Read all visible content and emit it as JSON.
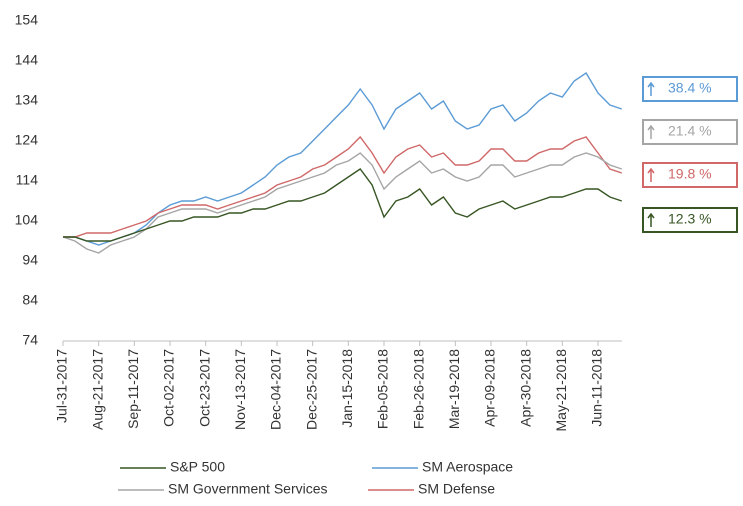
{
  "chart_data": {
    "type": "line",
    "categories": [
      "Jul-31-2017",
      null,
      null,
      "Aug-21-2017",
      null,
      null,
      "Sep-11-2017",
      null,
      null,
      "Oct-02-2017",
      null,
      null,
      "Oct-23-2017",
      null,
      null,
      "Nov-13-2017",
      null,
      null,
      "Dec-04-2017",
      null,
      null,
      "Dec-25-2017",
      null,
      null,
      "Jan-15-2018",
      null,
      null,
      "Feb-05-2018",
      null,
      null,
      "Feb-26-2018",
      null,
      null,
      "Mar-19-2018",
      null,
      null,
      "Apr-09-2018",
      null,
      null,
      "Apr-30-2018",
      null,
      null,
      "May-21-2018",
      null,
      null,
      "Jun-11-2018",
      null,
      null
    ],
    "series": [
      {
        "name": "S&P 500",
        "color": "#375623",
        "values": [
          100,
          100,
          99,
          99,
          99,
          100,
          101,
          102,
          103,
          104,
          104,
          105,
          105,
          105,
          106,
          106,
          107,
          107,
          108,
          109,
          109,
          110,
          111,
          113,
          115,
          117,
          113,
          105,
          109,
          110,
          112,
          108,
          110,
          106,
          105,
          107,
          108,
          109,
          107,
          108,
          109,
          110,
          110,
          111,
          112,
          112,
          110,
          109
        ]
      },
      {
        "name": "SM Aerospace",
        "color": "#5b9bd5",
        "values": [
          100,
          100,
          99,
          98,
          99,
          100,
          101,
          103,
          106,
          108,
          109,
          109,
          110,
          109,
          110,
          111,
          113,
          115,
          118,
          120,
          121,
          124,
          127,
          130,
          133,
          137,
          133,
          127,
          132,
          134,
          136,
          132,
          134,
          129,
          127,
          128,
          132,
          133,
          129,
          131,
          134,
          136,
          135,
          139,
          141,
          136,
          133,
          132
        ]
      },
      {
        "name": "SM Government Services",
        "color": "#a5a5a5",
        "values": [
          100,
          99,
          97,
          96,
          98,
          99,
          100,
          102,
          105,
          106,
          107,
          107,
          107,
          106,
          107,
          108,
          109,
          110,
          112,
          113,
          114,
          115,
          116,
          118,
          119,
          121,
          118,
          112,
          115,
          117,
          119,
          116,
          117,
          115,
          114,
          115,
          118,
          118,
          115,
          116,
          117,
          118,
          118,
          120,
          121,
          120,
          118,
          117
        ]
      },
      {
        "name": "SM Defense",
        "color": "#d06868",
        "values": [
          100,
          100,
          101,
          101,
          101,
          102,
          103,
          104,
          106,
          107,
          108,
          108,
          108,
          107,
          108,
          109,
          110,
          111,
          113,
          114,
          115,
          117,
          118,
          120,
          122,
          125,
          121,
          116,
          120,
          122,
          123,
          120,
          121,
          118,
          118,
          119,
          122,
          122,
          119,
          119,
          121,
          122,
          122,
          124,
          125,
          121,
          117,
          116
        ]
      }
    ],
    "ylim": [
      74,
      154
    ],
    "yticks": [
      74,
      84,
      94,
      104,
      114,
      124,
      134,
      144,
      154
    ],
    "annotations": [
      {
        "text": "38.4 %",
        "color": "#5b9bd5"
      },
      {
        "text": "21.4 %",
        "color": "#a5a5a5"
      },
      {
        "text": "19.8 %",
        "color": "#d06868"
      },
      {
        "text": "12.3 %",
        "color": "#375623"
      }
    ]
  }
}
